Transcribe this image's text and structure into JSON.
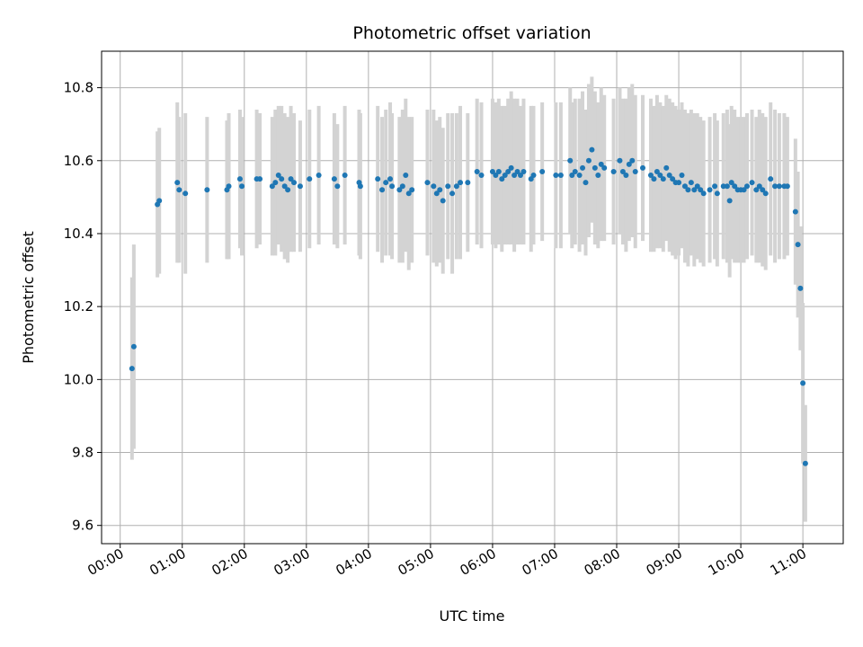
{
  "chart_data": {
    "type": "scatter",
    "title": "Photometric offset variation",
    "xlabel": "UTC time",
    "ylabel": "Photometric offset",
    "x_unit": "hours",
    "xlim": [
      -0.3,
      11.65
    ],
    "ylim": [
      9.55,
      10.9
    ],
    "grid": true,
    "x_ticks": [
      {
        "value": 0,
        "label": "00:00"
      },
      {
        "value": 1,
        "label": "01:00"
      },
      {
        "value": 2,
        "label": "02:00"
      },
      {
        "value": 3,
        "label": "03:00"
      },
      {
        "value": 4,
        "label": "04:00"
      },
      {
        "value": 5,
        "label": "05:00"
      },
      {
        "value": 6,
        "label": "06:00"
      },
      {
        "value": 7,
        "label": "07:00"
      },
      {
        "value": 8,
        "label": "08:00"
      },
      {
        "value": 9,
        "label": "09:00"
      },
      {
        "value": 10,
        "label": "10:00"
      },
      {
        "value": 11,
        "label": "11:00"
      }
    ],
    "y_ticks": [
      {
        "value": 9.6,
        "label": "9.6"
      },
      {
        "value": 9.8,
        "label": "9.8"
      },
      {
        "value": 10.0,
        "label": "10.0"
      },
      {
        "value": 10.2,
        "label": "10.2"
      },
      {
        "value": 10.4,
        "label": "10.4"
      },
      {
        "value": 10.6,
        "label": "10.6"
      },
      {
        "value": 10.8,
        "label": "10.8"
      }
    ],
    "series": [
      {
        "marker_color": "#1f77b4",
        "errorbar_color": "#d3d3d3",
        "points": [
          [
            0.19,
            10.03,
            0.25
          ],
          [
            0.22,
            10.09,
            0.28
          ],
          [
            0.6,
            10.48,
            0.2
          ],
          [
            0.63,
            10.49,
            0.2
          ],
          [
            0.92,
            10.54,
            0.22
          ],
          [
            0.95,
            10.52,
            0.2
          ],
          [
            1.05,
            10.51,
            0.22
          ],
          [
            1.4,
            10.52,
            0.2
          ],
          [
            1.72,
            10.52,
            0.19
          ],
          [
            1.75,
            10.53,
            0.2
          ],
          [
            1.93,
            10.55,
            0.19
          ],
          [
            1.96,
            10.53,
            0.19
          ],
          [
            2.2,
            10.55,
            0.19
          ],
          [
            2.25,
            10.55,
            0.18
          ],
          [
            2.45,
            10.53,
            0.19
          ],
          [
            2.5,
            10.54,
            0.2
          ],
          [
            2.55,
            10.56,
            0.19
          ],
          [
            2.6,
            10.55,
            0.2
          ],
          [
            2.65,
            10.53,
            0.2
          ],
          [
            2.7,
            10.52,
            0.2
          ],
          [
            2.75,
            10.55,
            0.2
          ],
          [
            2.8,
            10.54,
            0.19
          ],
          [
            2.9,
            10.53,
            0.18
          ],
          [
            3.05,
            10.55,
            0.19
          ],
          [
            3.2,
            10.56,
            0.19
          ],
          [
            3.45,
            10.55,
            0.18
          ],
          [
            3.5,
            10.53,
            0.17
          ],
          [
            3.62,
            10.56,
            0.19
          ],
          [
            3.85,
            10.54,
            0.2
          ],
          [
            3.87,
            10.53,
            0.2
          ],
          [
            4.15,
            10.55,
            0.2
          ],
          [
            4.22,
            10.52,
            0.2
          ],
          [
            4.28,
            10.54,
            0.2
          ],
          [
            4.35,
            10.55,
            0.21
          ],
          [
            4.38,
            10.53,
            0.2
          ],
          [
            4.5,
            10.52,
            0.2
          ],
          [
            4.55,
            10.53,
            0.21
          ],
          [
            4.6,
            10.56,
            0.21
          ],
          [
            4.65,
            10.51,
            0.21
          ],
          [
            4.7,
            10.52,
            0.2
          ],
          [
            4.95,
            10.54,
            0.2
          ],
          [
            5.05,
            10.53,
            0.21
          ],
          [
            5.1,
            10.51,
            0.2
          ],
          [
            5.15,
            10.52,
            0.2
          ],
          [
            5.2,
            10.49,
            0.2
          ],
          [
            5.28,
            10.53,
            0.2
          ],
          [
            5.35,
            10.51,
            0.22
          ],
          [
            5.42,
            10.53,
            0.2
          ],
          [
            5.48,
            10.54,
            0.21
          ],
          [
            5.6,
            10.54,
            0.19
          ],
          [
            5.75,
            10.57,
            0.2
          ],
          [
            5.82,
            10.56,
            0.2
          ],
          [
            6.0,
            10.57,
            0.2
          ],
          [
            6.05,
            10.56,
            0.2
          ],
          [
            6.1,
            10.57,
            0.2
          ],
          [
            6.15,
            10.55,
            0.2
          ],
          [
            6.2,
            10.56,
            0.19
          ],
          [
            6.25,
            10.57,
            0.2
          ],
          [
            6.3,
            10.58,
            0.21
          ],
          [
            6.35,
            10.56,
            0.21
          ],
          [
            6.4,
            10.57,
            0.2
          ],
          [
            6.45,
            10.56,
            0.19
          ],
          [
            6.5,
            10.57,
            0.2
          ],
          [
            6.62,
            10.55,
            0.2
          ],
          [
            6.66,
            10.56,
            0.19
          ],
          [
            6.8,
            10.57,
            0.19
          ],
          [
            7.02,
            10.56,
            0.2
          ],
          [
            7.1,
            10.56,
            0.2
          ],
          [
            7.25,
            10.6,
            0.2
          ],
          [
            7.28,
            10.56,
            0.2
          ],
          [
            7.33,
            10.57,
            0.2
          ],
          [
            7.4,
            10.56,
            0.21
          ],
          [
            7.45,
            10.58,
            0.21
          ],
          [
            7.5,
            10.54,
            0.2
          ],
          [
            7.55,
            10.6,
            0.21
          ],
          [
            7.6,
            10.63,
            0.2
          ],
          [
            7.65,
            10.58,
            0.21
          ],
          [
            7.7,
            10.56,
            0.2
          ],
          [
            7.75,
            10.59,
            0.21
          ],
          [
            7.8,
            10.58,
            0.2
          ],
          [
            7.95,
            10.57,
            0.2
          ],
          [
            8.05,
            10.6,
            0.2
          ],
          [
            8.1,
            10.57,
            0.2
          ],
          [
            8.15,
            10.56,
            0.21
          ],
          [
            8.2,
            10.59,
            0.21
          ],
          [
            8.25,
            10.6,
            0.21
          ],
          [
            8.3,
            10.57,
            0.21
          ],
          [
            8.42,
            10.58,
            0.2
          ],
          [
            8.55,
            10.56,
            0.21
          ],
          [
            8.6,
            10.55,
            0.2
          ],
          [
            8.65,
            10.57,
            0.21
          ],
          [
            8.7,
            10.56,
            0.2
          ],
          [
            8.75,
            10.55,
            0.2
          ],
          [
            8.8,
            10.58,
            0.2
          ],
          [
            8.85,
            10.56,
            0.21
          ],
          [
            8.9,
            10.55,
            0.21
          ],
          [
            8.95,
            10.54,
            0.21
          ],
          [
            9.0,
            10.54,
            0.2
          ],
          [
            9.05,
            10.56,
            0.2
          ],
          [
            9.1,
            10.53,
            0.21
          ],
          [
            9.15,
            10.52,
            0.21
          ],
          [
            9.2,
            10.54,
            0.2
          ],
          [
            9.25,
            10.52,
            0.21
          ],
          [
            9.3,
            10.53,
            0.2
          ],
          [
            9.35,
            10.52,
            0.2
          ],
          [
            9.4,
            10.51,
            0.2
          ],
          [
            9.5,
            10.52,
            0.2
          ],
          [
            9.58,
            10.53,
            0.2
          ],
          [
            9.62,
            10.51,
            0.2
          ],
          [
            9.72,
            10.53,
            0.2
          ],
          [
            9.78,
            10.53,
            0.21
          ],
          [
            9.82,
            10.49,
            0.21
          ],
          [
            9.85,
            10.54,
            0.21
          ],
          [
            9.9,
            10.53,
            0.21
          ],
          [
            9.95,
            10.52,
            0.2
          ],
          [
            10.0,
            10.52,
            0.2
          ],
          [
            10.05,
            10.52,
            0.2
          ],
          [
            10.1,
            10.53,
            0.2
          ],
          [
            10.18,
            10.54,
            0.2
          ],
          [
            10.25,
            10.52,
            0.2
          ],
          [
            10.3,
            10.53,
            0.21
          ],
          [
            10.35,
            10.52,
            0.21
          ],
          [
            10.4,
            10.51,
            0.21
          ],
          [
            10.48,
            10.55,
            0.21
          ],
          [
            10.55,
            10.53,
            0.21
          ],
          [
            10.62,
            10.53,
            0.2
          ],
          [
            10.7,
            10.53,
            0.2
          ],
          [
            10.75,
            10.53,
            0.19
          ],
          [
            10.88,
            10.46,
            0.2
          ],
          [
            10.92,
            10.37,
            0.2
          ],
          [
            10.96,
            10.25,
            0.17
          ],
          [
            11.0,
            9.99,
            0.22
          ],
          [
            11.04,
            9.77,
            0.16
          ]
        ]
      }
    ]
  }
}
